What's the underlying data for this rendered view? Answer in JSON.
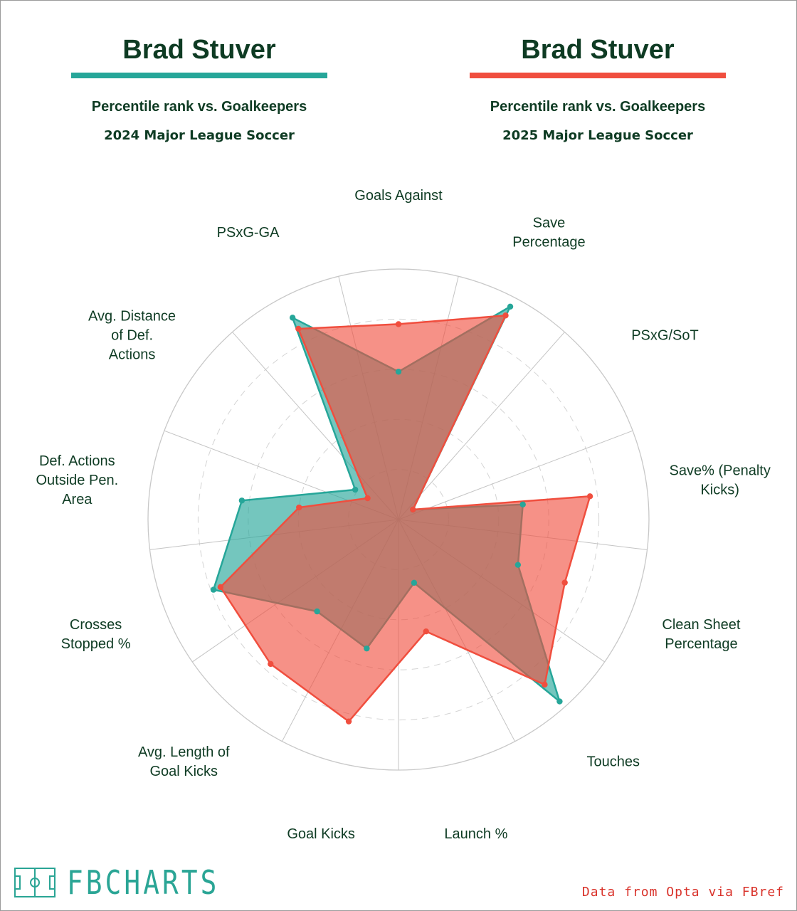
{
  "header": {
    "left": {
      "player": "Brad Stuver",
      "subtitle": "Percentile rank vs. Goalkeepers",
      "competition": "2024 Major League Soccer",
      "color": "#26a699"
    },
    "right": {
      "player": "Brad Stuver",
      "subtitle": "Percentile rank vs. Goalkeepers",
      "competition": "2025 Major League Soccer",
      "color": "#f04e3e"
    }
  },
  "chart_data": {
    "type": "radar",
    "title": "Percentile rank vs. Goalkeepers",
    "range": [
      0,
      100
    ],
    "rings": [
      20,
      40,
      60,
      80,
      100
    ],
    "categories": [
      "Goals Against",
      "Save Percentage",
      "PSxG/SoT",
      "Save% (Penalty Kicks)",
      "Clean Sheet Percentage",
      "Touches",
      "Launch %",
      "Goal Kicks",
      "Avg. Length of Goal Kicks",
      "Crosses Stopped %",
      "Def. Actions Outside Pen. Area",
      "Avg. Distance of Def. Actions",
      "PSxG-GA"
    ],
    "series": [
      {
        "name": "2024 Major League Soccer",
        "color": "#26a699",
        "values": [
          59,
          96,
          7,
          50,
          51,
          97,
          26,
          53,
          49,
          79,
          63,
          21,
          91
        ]
      },
      {
        "name": "2025 Major League Soccer",
        "color": "#f04e3e",
        "values": [
          78,
          92,
          7,
          77,
          71,
          88,
          46,
          83,
          77,
          76,
          40,
          15,
          86
        ]
      }
    ]
  },
  "footer": {
    "logo_text": "FBCHARTS",
    "source": "Data from Opta via FBref"
  }
}
